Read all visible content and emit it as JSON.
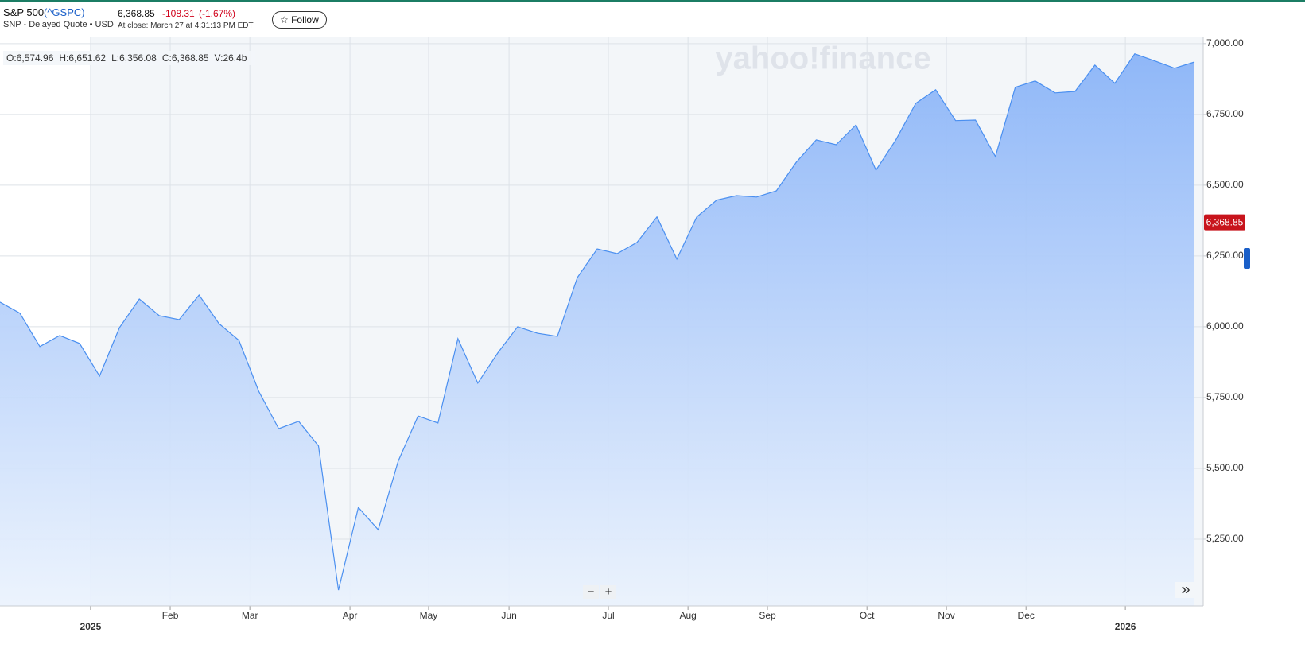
{
  "header": {
    "name": "S&P 500",
    "symbol": "(^GSPC)",
    "subtitle": "SNP - Delayed Quote • USD",
    "change": "-108.31",
    "change_percent": "(-1.67%)",
    "close_time": "At close: March 27 at 4:31:13 PM EDT",
    "follow": "☆ Follow"
  },
  "ohlc": [
    "O:6,574.96",
    "H:6,651.62",
    "L:6,356.08",
    "C:6,368.85",
    "V:26.4b"
  ],
  "watermark": "yahoo!finance",
  "controls": {
    "zoom_out": "−",
    "zoom_in": "+",
    "expand": "»"
  },
  "chart_data": {
    "type": "area",
    "x": [
      0,
      1,
      2,
      3,
      4,
      5,
      6,
      7,
      8,
      9,
      10,
      11,
      12,
      13,
      14,
      15,
      16,
      17,
      18,
      19,
      20,
      21,
      22,
      23,
      24,
      25,
      26,
      27,
      28,
      29,
      30,
      31,
      32,
      33,
      34,
      35,
      36,
      37,
      38,
      39,
      40,
      41,
      42,
      43,
      44,
      45,
      46,
      47,
      48,
      49,
      50,
      51,
      52,
      53,
      54,
      55,
      56,
      57,
      58,
      59,
      60
    ],
    "values": [
      6087,
      6048,
      5930,
      5969,
      5941,
      5826,
      5997,
      6098,
      6039,
      6025,
      6112,
      6011,
      5952,
      5772,
      5640,
      5666,
      5579,
      5070,
      5362,
      5283,
      5525,
      5685,
      5660,
      5958,
      5801,
      5907,
      6000,
      5977,
      5966,
      6174,
      6275,
      6258,
      6298,
      6388,
      6239,
      6388,
      6447,
      6463,
      6458,
      6480,
      6581,
      6660,
      6643,
      6713,
      6553,
      6660,
      6789,
      6837,
      6728,
      6730,
      6601,
      6846,
      6868,
      6826,
      6831,
      6924,
      6860,
      6964,
      6939,
      6913,
      6935
    ],
    "color": "#4a8ff0",
    "xlim": [
      0,
      60.44
    ],
    "xticks": [
      {
        "value": 4.55,
        "label": "2025"
      },
      {
        "value": 8.55,
        "label": "Feb"
      },
      {
        "value": 12.55,
        "label": "Mar"
      },
      {
        "value": 17.58,
        "label": "Apr"
      },
      {
        "value": 21.53,
        "label": "May"
      },
      {
        "value": 25.57,
        "label": "Jun"
      },
      {
        "value": 30.56,
        "label": "Jul"
      },
      {
        "value": 34.56,
        "label": "Aug"
      },
      {
        "value": 38.55,
        "label": "Sep"
      },
      {
        "value": 43.55,
        "label": "Oct"
      },
      {
        "value": 47.54,
        "label": "Nov"
      },
      {
        "value": 51.54,
        "label": "Dec"
      },
      {
        "value": 56.53,
        "label": "2026"
      }
    ],
    "ylim": [
      5014,
      7022
    ],
    "yticks": [
      {
        "value": 5250,
        "label": "5,250.00"
      },
      {
        "value": 5500,
        "label": "5,500.00"
      },
      {
        "value": 5750,
        "label": "5,750.00"
      },
      {
        "value": 6000,
        "label": "6,000.00"
      },
      {
        "value": 6250,
        "label": "6,250.00"
      },
      {
        "value": 6500,
        "label": "6,500.00"
      },
      {
        "value": 6750,
        "label": "6,750.00"
      },
      {
        "value": 7000,
        "label": "7,000.00"
      }
    ],
    "current_marker": {
      "value": 6368.85,
      "label": "6,368.85"
    },
    "grid": true
  }
}
